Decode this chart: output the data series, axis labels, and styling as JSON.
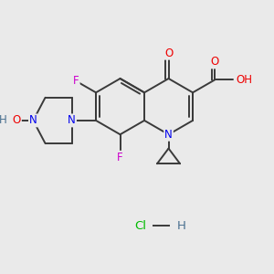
{
  "bg_color": "#EAEAEA",
  "bond_color": "#3a3a3a",
  "bond_width": 1.4,
  "atom_colors": {
    "C": "#3a3a3a",
    "N": "#0000EE",
    "O": "#EE0000",
    "F": "#CC00CC",
    "H": "#4a7090",
    "Cl": "#00BB00"
  },
  "font_size": 8.5
}
